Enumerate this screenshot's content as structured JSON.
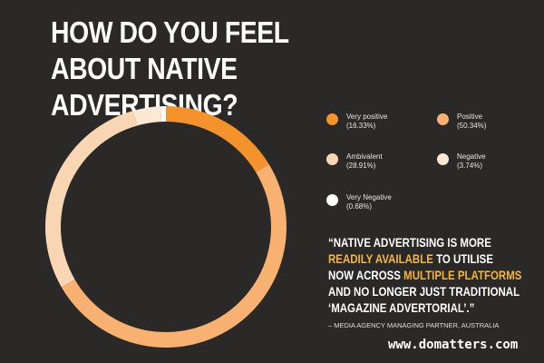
{
  "title": "HOW DO YOU FEEL ABOUT NATIVE ADVERTISING?",
  "chart_data": {
    "type": "pie",
    "donut": true,
    "title": "HOW DO YOU FEEL ABOUT NATIVE ADVERTISING?",
    "categories": [
      "Very positive",
      "Positive",
      "Ambivalent",
      "Negative",
      "Very Negative"
    ],
    "values": [
      16.33,
      50.34,
      28.91,
      3.74,
      0.68
    ],
    "value_labels": [
      "(16.33%)",
      "(50.34%)",
      "(28.91%)",
      "(3.74%)",
      "(0.68%)"
    ],
    "colors": [
      "#f4922c",
      "#f8b170",
      "#f9d6b3",
      "#fde8d3",
      "#ffffff"
    ],
    "legend_placement": "right"
  },
  "quote": {
    "line1": "“NATIVE ADVERTISING IS MORE",
    "line2_highlight": "READILY AVAILABLE",
    "line2_rest": " TO UTILISE",
    "line3_pre": "NOW ACROSS ",
    "line3_highlight": "MULTIPLE PLATFORMS",
    "line4": "AND NO LONGER JUST TRADITIONAL",
    "line5": "‘MAGAZINE ADVERTORIAL’.”",
    "highlight_color": "#f4b73c"
  },
  "attribution": "– MEDIA AGENCY MANAGING PARTNER, AUSTRALIA",
  "watermark": "www.domatters.com"
}
